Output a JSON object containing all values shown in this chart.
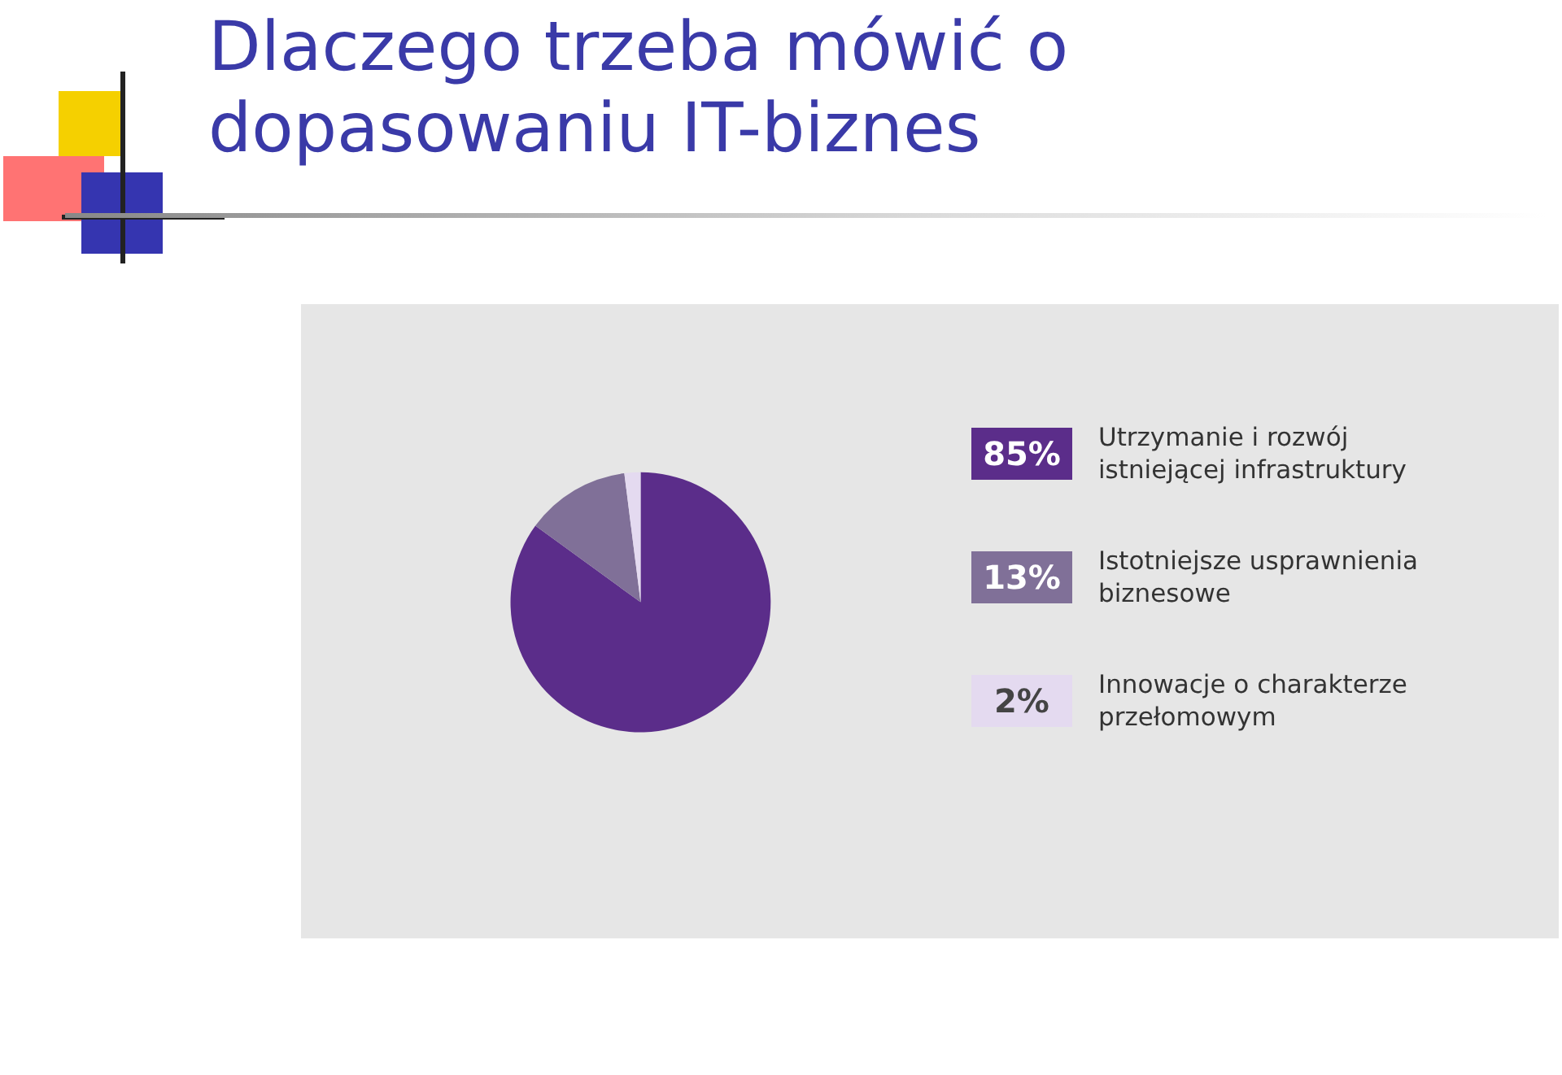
{
  "chart_data": {
    "type": "pie",
    "title": "Dlaczego trzeba mówić o dopasowaniu IT-biznes",
    "categories": [
      "Utrzymanie i rozwój istniejącej infrastruktury",
      "Istotniejsze usprawnienia biznesowe",
      "Innowacje o charakterze przełomowym"
    ],
    "values": [
      85,
      13,
      2
    ],
    "colors": [
      "#5b2d8a",
      "#807098",
      "#e4daf0"
    ],
    "value_labels": [
      "85%",
      "13%",
      "2%"
    ],
    "legend": "right"
  }
}
